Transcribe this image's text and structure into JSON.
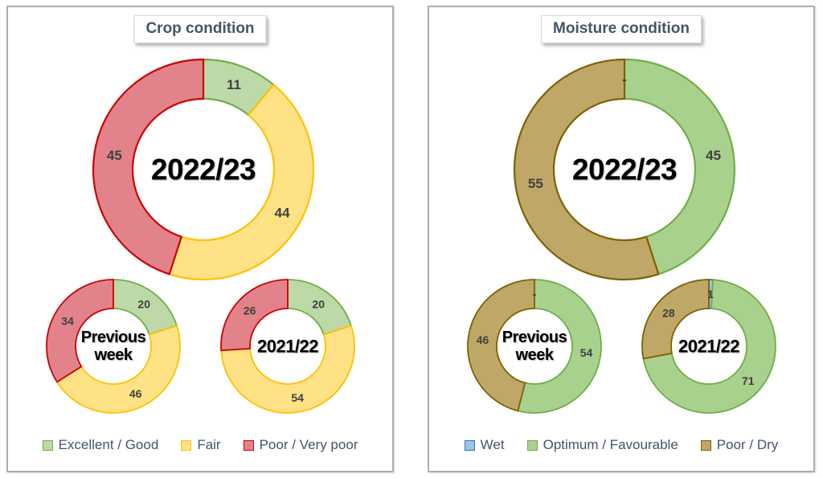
{
  "chart_data": [
    {
      "type": "pie",
      "subtype": "donut",
      "title": "Crop condition",
      "legend_position": "bottom",
      "categories": [
        "Excellent / Good",
        "Fair",
        "Poor / Very poor"
      ],
      "colors": [
        {
          "fill": "#bcd9a7",
          "stroke": "#70ad47"
        },
        {
          "fill": "#ffe285",
          "stroke": "#ffc000"
        },
        {
          "fill": "#e2838b",
          "stroke": "#cc0000"
        }
      ],
      "series": [
        {
          "name": "2022/23",
          "center_lines": [
            "2022/23"
          ],
          "values": [
            11,
            44,
            45
          ],
          "labels": [
            "11",
            "44",
            "45"
          ]
        },
        {
          "name": "Previous week",
          "center_lines": [
            "Previous",
            "week"
          ],
          "values": [
            20,
            46,
            34
          ],
          "labels": [
            "20",
            "46",
            "34"
          ]
        },
        {
          "name": "2021/22",
          "center_lines": [
            "2021/22"
          ],
          "values": [
            20,
            54,
            26
          ],
          "labels": [
            "20",
            "54",
            "26"
          ]
        }
      ]
    },
    {
      "type": "pie",
      "subtype": "donut",
      "title": "Moisture condition",
      "legend_position": "bottom",
      "categories": [
        "Wet",
        "Optimum / Favourable",
        "Poor / Dry"
      ],
      "colors": [
        {
          "fill": "#9dc3e6",
          "stroke": "#2e75b6"
        },
        {
          "fill": "#a9d18e",
          "stroke": "#70ad47"
        },
        {
          "fill": "#bfa768",
          "stroke": "#7f6000"
        }
      ],
      "series": [
        {
          "name": "2022/23",
          "center_lines": [
            "2022/23"
          ],
          "values": [
            0,
            45,
            55
          ],
          "labels": [
            "-",
            "45",
            "55"
          ]
        },
        {
          "name": "Previous week",
          "center_lines": [
            "Previous",
            "week"
          ],
          "values": [
            0,
            54,
            46
          ],
          "labels": [
            "-",
            "54",
            "46"
          ]
        },
        {
          "name": "2021/22",
          "center_lines": [
            "2021/22"
          ],
          "values": [
            1,
            71,
            28
          ],
          "labels": [
            "1",
            "71",
            "28"
          ]
        }
      ]
    }
  ]
}
